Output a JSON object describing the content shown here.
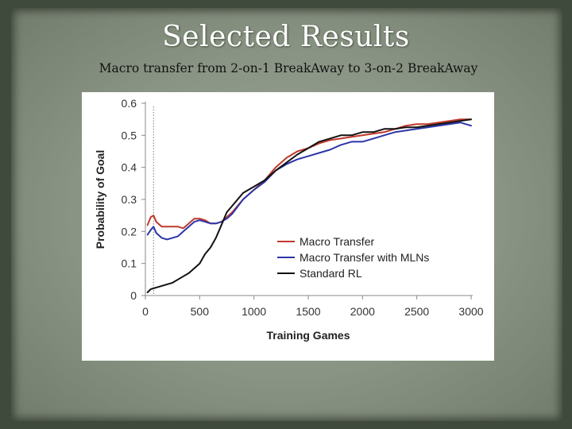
{
  "slide": {
    "title": "Selected Results",
    "subtitle": "Macro transfer from 2-on-1 BreakAway to 3-on-2 BreakAway"
  },
  "chart_data": {
    "type": "line",
    "title": "",
    "xlabel": "Training Games",
    "ylabel": "Probability of Goal",
    "xlim": [
      0,
      3000
    ],
    "ylim": [
      0,
      0.6
    ],
    "xticks": [
      0,
      500,
      1000,
      1500,
      2000,
      2500,
      3000
    ],
    "yticks": [
      0,
      0.1,
      0.2,
      0.3,
      0.4,
      0.5,
      0.6
    ],
    "xtick_labels": [
      "0",
      "500",
      "1000",
      "1500",
      "2000",
      "2500",
      "3000"
    ],
    "ytick_labels": [
      "0",
      "0.1",
      "0.2",
      "0.3",
      "0.4",
      "0.5",
      "0.6"
    ],
    "grid": false,
    "legend_position": "center-right",
    "reference_line": {
      "x": 75,
      "style": "dotted"
    },
    "series": [
      {
        "name": "Macro Transfer",
        "color": "#c0392b",
        "x": [
          20,
          50,
          75,
          100,
          150,
          200,
          300,
          350,
          400,
          450,
          500,
          550,
          600,
          650,
          700,
          750,
          800,
          900,
          1000,
          1100,
          1200,
          1300,
          1400,
          1500,
          1600,
          1700,
          1800,
          1900,
          2000,
          2100,
          2200,
          2300,
          2400,
          2500,
          2600,
          2700,
          2800,
          2900,
          3000
        ],
        "y": [
          0.22,
          0.245,
          0.25,
          0.23,
          0.215,
          0.215,
          0.215,
          0.21,
          0.225,
          0.24,
          0.24,
          0.235,
          0.225,
          0.225,
          0.23,
          0.245,
          0.26,
          0.3,
          0.33,
          0.36,
          0.4,
          0.43,
          0.45,
          0.46,
          0.475,
          0.485,
          0.49,
          0.495,
          0.5,
          0.505,
          0.51,
          0.52,
          0.53,
          0.535,
          0.535,
          0.54,
          0.545,
          0.55,
          0.55
        ]
      },
      {
        "name": "Macro Transfer with MLNs",
        "color": "#2c35a8",
        "x": [
          20,
          50,
          75,
          100,
          150,
          200,
          250,
          300,
          350,
          400,
          450,
          500,
          550,
          600,
          650,
          700,
          750,
          800,
          900,
          1000,
          1100,
          1200,
          1300,
          1400,
          1500,
          1600,
          1700,
          1800,
          1900,
          2000,
          2100,
          2200,
          2300,
          2400,
          2500,
          2600,
          2700,
          2800,
          2900,
          3000
        ],
        "y": [
          0.19,
          0.205,
          0.215,
          0.195,
          0.18,
          0.175,
          0.18,
          0.185,
          0.2,
          0.215,
          0.23,
          0.235,
          0.23,
          0.225,
          0.225,
          0.23,
          0.24,
          0.255,
          0.3,
          0.33,
          0.355,
          0.39,
          0.41,
          0.425,
          0.435,
          0.445,
          0.455,
          0.47,
          0.48,
          0.48,
          0.49,
          0.5,
          0.51,
          0.515,
          0.52,
          0.525,
          0.53,
          0.535,
          0.54,
          0.53
        ]
      },
      {
        "name": "Standard RL",
        "color": "#111111",
        "x": [
          20,
          50,
          100,
          150,
          200,
          250,
          300,
          350,
          400,
          450,
          500,
          550,
          600,
          650,
          700,
          750,
          800,
          900,
          1000,
          1100,
          1200,
          1300,
          1400,
          1500,
          1600,
          1700,
          1800,
          1900,
          2000,
          2100,
          2200,
          2300,
          2400,
          2500,
          2600,
          2700,
          2800,
          2900,
          3000
        ],
        "y": [
          0.01,
          0.02,
          0.025,
          0.03,
          0.035,
          0.04,
          0.05,
          0.06,
          0.07,
          0.085,
          0.1,
          0.13,
          0.15,
          0.18,
          0.22,
          0.26,
          0.28,
          0.32,
          0.34,
          0.36,
          0.39,
          0.415,
          0.44,
          0.46,
          0.48,
          0.49,
          0.5,
          0.5,
          0.51,
          0.51,
          0.52,
          0.52,
          0.525,
          0.525,
          0.53,
          0.535,
          0.54,
          0.545,
          0.55
        ]
      }
    ]
  }
}
